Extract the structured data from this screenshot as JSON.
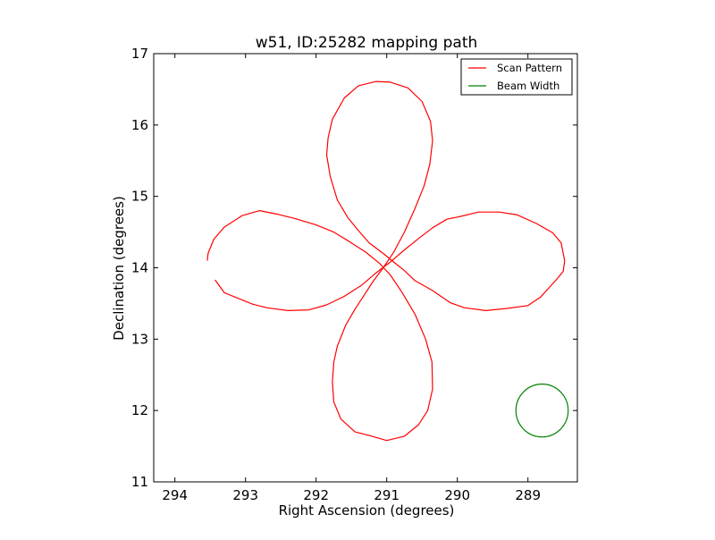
{
  "chart_data": {
    "type": "line",
    "title": "w51, ID:25282 mapping path",
    "xlabel": "Right Ascension (degrees)",
    "ylabel": "Declination (degrees)",
    "xlim": [
      294.3,
      288.3
    ],
    "ylim": [
      11,
      17
    ],
    "x_inverted": true,
    "xticks": [
      294,
      293,
      292,
      291,
      290,
      289
    ],
    "yticks": [
      11,
      12,
      13,
      14,
      15,
      16,
      17
    ],
    "grid": false,
    "legend": {
      "position": "top-right"
    },
    "series": [
      {
        "name": "Scan Pattern",
        "color": "#ff0000",
        "points": [
          [
            293.43,
            13.83
          ],
          [
            293.3,
            13.65
          ],
          [
            293.1,
            13.57
          ],
          [
            292.9,
            13.49
          ],
          [
            292.7,
            13.44
          ],
          [
            292.4,
            13.4
          ],
          [
            292.1,
            13.41
          ],
          [
            291.85,
            13.48
          ],
          [
            291.6,
            13.6
          ],
          [
            291.35,
            13.76
          ],
          [
            291.15,
            13.93
          ],
          [
            290.95,
            14.08
          ],
          [
            290.75,
            14.25
          ],
          [
            290.55,
            14.41
          ],
          [
            290.35,
            14.56
          ],
          [
            290.15,
            14.68
          ],
          [
            289.95,
            14.72
          ],
          [
            289.7,
            14.78
          ],
          [
            289.4,
            14.78
          ],
          [
            289.15,
            14.74
          ],
          [
            288.88,
            14.62
          ],
          [
            288.65,
            14.49
          ],
          [
            288.53,
            14.35
          ],
          [
            288.48,
            14.1
          ],
          [
            288.5,
            13.95
          ],
          [
            288.6,
            13.83
          ],
          [
            288.72,
            13.7
          ],
          [
            288.82,
            13.59
          ],
          [
            289.0,
            13.47
          ],
          [
            289.3,
            13.43
          ],
          [
            289.6,
            13.4
          ],
          [
            289.9,
            13.44
          ],
          [
            290.1,
            13.51
          ],
          [
            290.35,
            13.68
          ],
          [
            290.6,
            13.82
          ],
          [
            290.75,
            13.96
          ],
          [
            290.9,
            14.08
          ],
          [
            291.05,
            14.2
          ],
          [
            291.25,
            14.35
          ],
          [
            291.4,
            14.52
          ],
          [
            291.55,
            14.7
          ],
          [
            291.7,
            14.95
          ],
          [
            291.8,
            15.28
          ],
          [
            291.85,
            15.58
          ],
          [
            291.83,
            15.82
          ],
          [
            291.77,
            16.08
          ],
          [
            291.6,
            16.38
          ],
          [
            291.4,
            16.55
          ],
          [
            291.15,
            16.61
          ],
          [
            290.95,
            16.6
          ],
          [
            290.7,
            16.52
          ],
          [
            290.5,
            16.33
          ],
          [
            290.38,
            16.05
          ],
          [
            290.35,
            15.78
          ],
          [
            290.39,
            15.45
          ],
          [
            290.47,
            15.15
          ],
          [
            290.6,
            14.83
          ],
          [
            290.75,
            14.5
          ],
          [
            290.9,
            14.22
          ],
          [
            291.05,
            14.0
          ],
          [
            291.2,
            13.8
          ],
          [
            291.33,
            13.6
          ],
          [
            291.45,
            13.42
          ],
          [
            291.58,
            13.2
          ],
          [
            291.7,
            12.9
          ],
          [
            291.75,
            12.68
          ],
          [
            291.77,
            12.4
          ],
          [
            291.75,
            12.12
          ],
          [
            291.65,
            11.88
          ],
          [
            291.45,
            11.7
          ],
          [
            291.25,
            11.65
          ],
          [
            291.0,
            11.58
          ],
          [
            290.75,
            11.64
          ],
          [
            290.55,
            11.8
          ],
          [
            290.42,
            12.0
          ],
          [
            290.35,
            12.3
          ],
          [
            290.36,
            12.68
          ],
          [
            290.45,
            13.0
          ],
          [
            290.6,
            13.35
          ],
          [
            290.78,
            13.65
          ],
          [
            290.95,
            13.9
          ],
          [
            291.1,
            14.06
          ],
          [
            291.3,
            14.22
          ],
          [
            291.55,
            14.38
          ],
          [
            291.75,
            14.5
          ],
          [
            292.0,
            14.6
          ],
          [
            292.3,
            14.69
          ],
          [
            292.55,
            14.75
          ],
          [
            292.8,
            14.8
          ],
          [
            293.05,
            14.73
          ],
          [
            293.3,
            14.57
          ],
          [
            293.45,
            14.4
          ],
          [
            293.53,
            14.2
          ],
          [
            293.54,
            14.1
          ]
        ]
      },
      {
        "name": "Beam Width",
        "color": "#008000",
        "center": [
          288.8,
          12.0
        ],
        "radius": 0.37
      }
    ]
  }
}
